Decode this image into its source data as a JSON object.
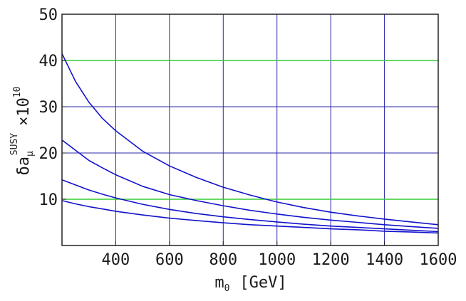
{
  "chart_data": {
    "type": "line",
    "title": "",
    "xlabel": {
      "main": "m",
      "sub": "0",
      "unit": "[GeV]"
    },
    "ylabel": {
      "prefix": "δa",
      "sub": "μ",
      "sup": "SUSY",
      "suffix": "×10",
      "suffix_sup": "10"
    },
    "xlim": [
      200,
      1600
    ],
    "ylim": [
      0,
      50
    ],
    "xticks": [
      400,
      600,
      800,
      1000,
      1200,
      1400,
      1600
    ],
    "yticks": [
      10,
      20,
      30,
      40,
      50
    ],
    "grid": true,
    "highlight_lines": [
      10,
      40
    ],
    "colors": {
      "series": "#1212cc",
      "grid": "#2a2aaa",
      "highlight": "#33cc33",
      "axis": "#222222"
    },
    "series": [
      {
        "x": [
          200,
          250,
          300,
          350,
          400,
          500,
          600,
          700,
          800,
          900,
          1000,
          1100,
          1200,
          1300,
          1400,
          1500,
          1600
        ],
        "values": [
          41.5,
          35.5,
          31.0,
          27.5,
          24.8,
          20.4,
          17.2,
          14.7,
          12.6,
          10.9,
          9.4,
          8.2,
          7.2,
          6.4,
          5.7,
          5.1,
          4.5
        ]
      },
      {
        "x": [
          200,
          250,
          300,
          350,
          400,
          500,
          600,
          700,
          800,
          900,
          1000,
          1100,
          1200,
          1300,
          1400,
          1500,
          1600
        ],
        "values": [
          22.8,
          20.6,
          18.4,
          16.8,
          15.3,
          12.8,
          11.0,
          9.7,
          8.6,
          7.6,
          6.8,
          6.1,
          5.5,
          5.0,
          4.5,
          4.1,
          3.7
        ]
      },
      {
        "x": [
          200,
          250,
          300,
          350,
          400,
          500,
          600,
          700,
          800,
          900,
          1000,
          1100,
          1200,
          1300,
          1400,
          1500,
          1600
        ],
        "values": [
          14.2,
          13.1,
          12.0,
          11.1,
          10.3,
          8.9,
          7.8,
          6.9,
          6.2,
          5.6,
          5.1,
          4.6,
          4.2,
          3.9,
          3.6,
          3.3,
          3.0
        ]
      },
      {
        "x": [
          200,
          250,
          300,
          350,
          400,
          500,
          600,
          700,
          800,
          900,
          1000,
          1100,
          1200,
          1300,
          1400,
          1500,
          1600
        ],
        "values": [
          9.7,
          9.0,
          8.4,
          7.9,
          7.4,
          6.6,
          5.9,
          5.4,
          4.9,
          4.5,
          4.2,
          3.9,
          3.6,
          3.4,
          3.1,
          2.9,
          2.7
        ]
      }
    ]
  }
}
